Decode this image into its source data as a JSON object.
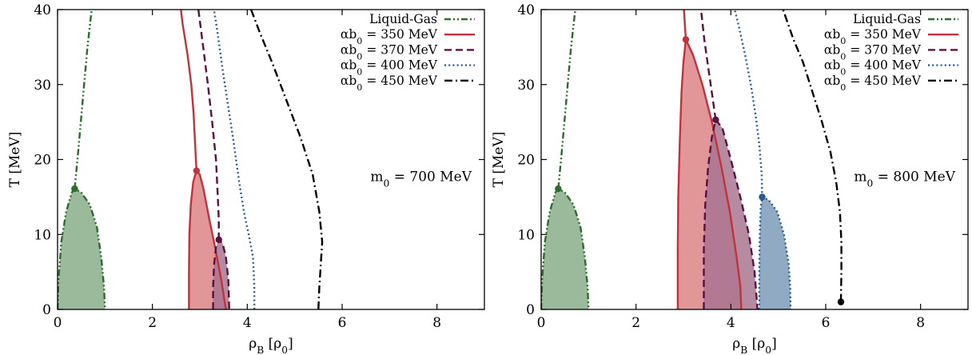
{
  "chart_data": [
    {
      "type": "line",
      "xlabel": "ρB [ρ0]",
      "ylabel": "T [MeV]",
      "xlim": [
        0,
        9
      ],
      "ylim": [
        0,
        40
      ],
      "xticks": [
        "0",
        "2",
        "4",
        "6",
        "8"
      ],
      "yticks": [
        "0",
        "10",
        "20",
        "30",
        "40"
      ],
      "grid": false,
      "legend_position": "top-right",
      "annotation": "m0 = 700 MeV",
      "series": [
        {
          "name": "Liquid-Gas",
          "color": "#2e6b2e",
          "fill": "#8aad8a",
          "dash": "dash-dot-dot",
          "coexistence": [
            [
              0.0,
              0
            ],
            [
              0.02,
              4
            ],
            [
              0.08,
              9
            ],
            [
              0.18,
              13
            ],
            [
              0.3,
              15.6
            ],
            [
              0.36,
              16.1
            ],
            [
              0.5,
              15.6
            ],
            [
              0.68,
              14
            ],
            [
              0.83,
              11
            ],
            [
              0.92,
              7
            ],
            [
              0.98,
              3
            ],
            [
              1.0,
              0
            ]
          ],
          "crossover": [
            [
              0.36,
              16.1
            ],
            [
              0.42,
              20
            ],
            [
              0.49,
              25
            ],
            [
              0.56,
              30
            ],
            [
              0.63,
              35
            ],
            [
              0.72,
              40
            ]
          ],
          "critical_point": [
            0.36,
            16.1
          ]
        },
        {
          "name": "αb0 = 350 MeV",
          "color": "#c1323a",
          "fill": "#dc8486",
          "dash": "solid",
          "coexistence": [
            [
              2.77,
              0
            ],
            [
              2.77,
              5
            ],
            [
              2.78,
              10
            ],
            [
              2.81,
              14
            ],
            [
              2.86,
              17
            ],
            [
              2.93,
              18.5
            ],
            [
              3.0,
              18
            ],
            [
              3.08,
              16
            ],
            [
              3.2,
              12
            ],
            [
              3.33,
              8
            ],
            [
              3.45,
              4
            ],
            [
              3.55,
              0
            ]
          ],
          "crossover": [
            [
              2.93,
              18.5
            ],
            [
              2.9,
              22
            ],
            [
              2.87,
              26
            ],
            [
              2.82,
              30
            ],
            [
              2.74,
              34
            ],
            [
              2.64,
              38
            ],
            [
              2.6,
              40
            ]
          ],
          "critical_point": [
            2.93,
            18.5
          ]
        },
        {
          "name": "αb0 = 370 MeV",
          "color": "#5a1040",
          "fill": "#a97591",
          "dash": "dashed",
          "coexistence": [
            [
              3.28,
              0
            ],
            [
              3.28,
              3
            ],
            [
              3.3,
              6
            ],
            [
              3.34,
              8.3
            ],
            [
              3.4,
              9.3
            ],
            [
              3.48,
              8.8
            ],
            [
              3.55,
              7
            ],
            [
              3.6,
              4
            ],
            [
              3.62,
              0
            ]
          ],
          "crossover": [
            [
              3.4,
              9.3
            ],
            [
              3.4,
              12
            ],
            [
              3.38,
              15
            ],
            [
              3.34,
              20
            ],
            [
              3.26,
              25
            ],
            [
              3.17,
              30
            ],
            [
              3.07,
              35
            ],
            [
              2.97,
              40
            ]
          ],
          "critical_point": [
            3.4,
            9.3
          ]
        },
        {
          "name": "αb0 = 400 MeV",
          "color": "#2b5b8c",
          "fill": "#7b9bb7",
          "dash": "dotted",
          "coexistence": [],
          "crossover": [
            [
              4.15,
              0
            ],
            [
              4.15,
              3
            ],
            [
              4.12,
              7
            ],
            [
              4.03,
              10
            ],
            [
              3.93,
              13
            ],
            [
              3.83,
              17
            ],
            [
              3.72,
              22
            ],
            [
              3.6,
              27
            ],
            [
              3.48,
              32
            ],
            [
              3.37,
              37
            ],
            [
              3.3,
              40
            ]
          ],
          "critical_point": null
        },
        {
          "name": "αb0 = 450 MeV",
          "color": "#000000",
          "fill": "#888888",
          "dash": "dash-dot",
          "coexistence": [],
          "crossover": [
            [
              5.5,
              0
            ],
            [
              5.52,
              3
            ],
            [
              5.55,
              6
            ],
            [
              5.58,
              9
            ],
            [
              5.52,
              13
            ],
            [
              5.38,
              18
            ],
            [
              5.12,
              23
            ],
            [
              4.82,
              28
            ],
            [
              4.52,
              33
            ],
            [
              4.26,
              37
            ],
            [
              4.08,
              40
            ]
          ],
          "critical_point": null
        }
      ]
    },
    {
      "type": "line",
      "xlabel": "ρB [ρ0]",
      "ylabel": "T [MeV]",
      "xlim": [
        0,
        9
      ],
      "ylim": [
        0,
        40
      ],
      "xticks": [
        "0",
        "2",
        "4",
        "6",
        "8"
      ],
      "yticks": [
        "0",
        "10",
        "20",
        "30",
        "40"
      ],
      "grid": false,
      "legend_position": "top-right",
      "annotation": "m0 = 800 MeV",
      "series": [
        {
          "name": "Liquid-Gas",
          "color": "#2e6b2e",
          "fill": "#8aad8a",
          "dash": "dash-dot-dot",
          "coexistence": [
            [
              0.0,
              0
            ],
            [
              0.02,
              4
            ],
            [
              0.08,
              9
            ],
            [
              0.18,
              13
            ],
            [
              0.3,
              15.6
            ],
            [
              0.36,
              16.1
            ],
            [
              0.5,
              15.6
            ],
            [
              0.68,
              14
            ],
            [
              0.83,
              11
            ],
            [
              0.92,
              7
            ],
            [
              0.98,
              3
            ],
            [
              1.0,
              0
            ]
          ],
          "crossover": [
            [
              0.36,
              16.1
            ],
            [
              0.42,
              20
            ],
            [
              0.49,
              25
            ],
            [
              0.56,
              30
            ],
            [
              0.63,
              35
            ],
            [
              0.72,
              40
            ]
          ],
          "critical_point": [
            0.36,
            16.1
          ]
        },
        {
          "name": "αb0 = 350 MeV",
          "color": "#c1323a",
          "fill": "#dc8486",
          "dash": "solid",
          "coexistence": [
            [
              2.88,
              0
            ],
            [
              2.88,
              8
            ],
            [
              2.89,
              15
            ],
            [
              2.92,
              22
            ],
            [
              2.96,
              29
            ],
            [
              3.0,
              33
            ],
            [
              3.05,
              36
            ],
            [
              3.2,
              34
            ],
            [
              3.4,
              30
            ],
            [
              3.6,
              25
            ],
            [
              3.8,
              19
            ],
            [
              3.98,
              13
            ],
            [
              4.12,
              7
            ],
            [
              4.2,
              3
            ],
            [
              4.22,
              0
            ]
          ],
          "crossover": [
            [
              3.05,
              36
            ],
            [
              3.03,
              38
            ],
            [
              3.01,
              40
            ]
          ],
          "critical_point": [
            3.05,
            36
          ]
        },
        {
          "name": "αb0 = 370 MeV",
          "color": "#5a1040",
          "fill": "#a97591",
          "dash": "dashed",
          "coexistence": [
            [
              3.43,
              0
            ],
            [
              3.43,
              8
            ],
            [
              3.46,
              14
            ],
            [
              3.52,
              19
            ],
            [
              3.6,
              23
            ],
            [
              3.68,
              25.3
            ],
            [
              3.82,
              24.2
            ],
            [
              4.0,
              20
            ],
            [
              4.2,
              15
            ],
            [
              4.38,
              10
            ],
            [
              4.5,
              5
            ],
            [
              4.56,
              0
            ]
          ],
          "crossover": [
            [
              3.68,
              25.3
            ],
            [
              3.62,
              28
            ],
            [
              3.53,
              32
            ],
            [
              3.44,
              36
            ],
            [
              3.37,
              40
            ]
          ],
          "critical_point": [
            3.68,
            25.3
          ]
        },
        {
          "name": "αb0 = 400 MeV",
          "color": "#2b5b8c",
          "fill": "#7b9bb7",
          "dash": "dotted",
          "coexistence": [
            [
              4.6,
              0
            ],
            [
              4.6,
              5
            ],
            [
              4.61,
              10
            ],
            [
              4.63,
              13.5
            ],
            [
              4.66,
              15
            ],
            [
              4.8,
              14.6
            ],
            [
              4.98,
              13
            ],
            [
              5.12,
              10
            ],
            [
              5.22,
              6
            ],
            [
              5.25,
              3
            ],
            [
              5.26,
              0
            ]
          ],
          "crossover": [
            [
              4.66,
              15
            ],
            [
              4.65,
              18
            ],
            [
              4.6,
              22
            ],
            [
              4.52,
              26
            ],
            [
              4.42,
              30
            ],
            [
              4.3,
              34
            ],
            [
              4.16,
              38
            ],
            [
              4.08,
              40
            ]
          ],
          "critical_point": [
            4.66,
            15
          ]
        },
        {
          "name": "αb0 = 450 MeV",
          "color": "#000000",
          "fill": "#888888",
          "dash": "dash-dot",
          "coexistence": [],
          "crossover": [
            [
              6.32,
              1
            ],
            [
              6.33,
              5
            ],
            [
              6.33,
              9
            ],
            [
              6.3,
              13
            ],
            [
              6.22,
              17
            ],
            [
              6.1,
              21
            ],
            [
              5.92,
              25
            ],
            [
              5.72,
              29
            ],
            [
              5.52,
              33
            ],
            [
              5.32,
              36
            ],
            [
              5.1,
              40
            ]
          ],
          "critical_point": [
            6.32,
            1
          ]
        }
      ]
    }
  ]
}
